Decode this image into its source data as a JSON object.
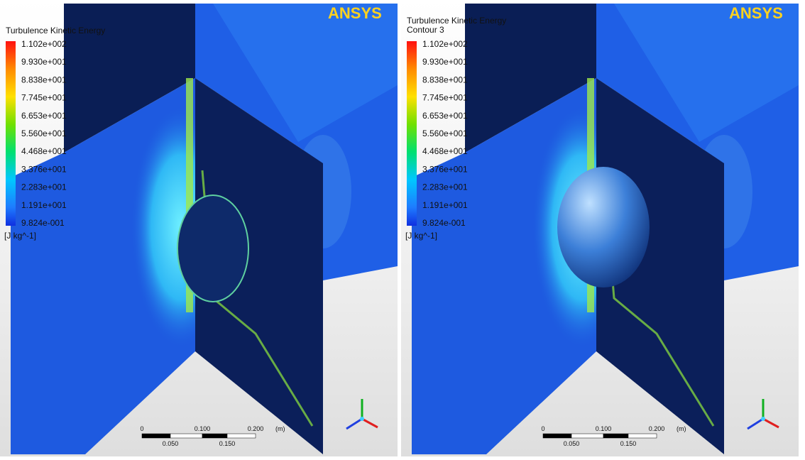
{
  "logo": "ANSYS",
  "panels": [
    {
      "title": "Turbulence Kinetic Energy"
    },
    {
      "title": "Turbulence Kinetic Energy",
      "subtitle": "Contour 3"
    }
  ],
  "legend": {
    "labels": [
      "1.102e+002",
      "9.930e+001",
      "8.838e+001",
      "7.745e+001",
      "6.653e+001",
      "5.560e+001",
      "4.468e+001",
      "3.376e+001",
      "2.283e+001",
      "1.191e+001",
      "9.824e-001"
    ],
    "units": "[J kg^-1]"
  },
  "scale": {
    "top": [
      "0",
      "0.100",
      "0.200"
    ],
    "unit": "(m)",
    "bottom": [
      "0.050",
      "0.150"
    ]
  }
}
